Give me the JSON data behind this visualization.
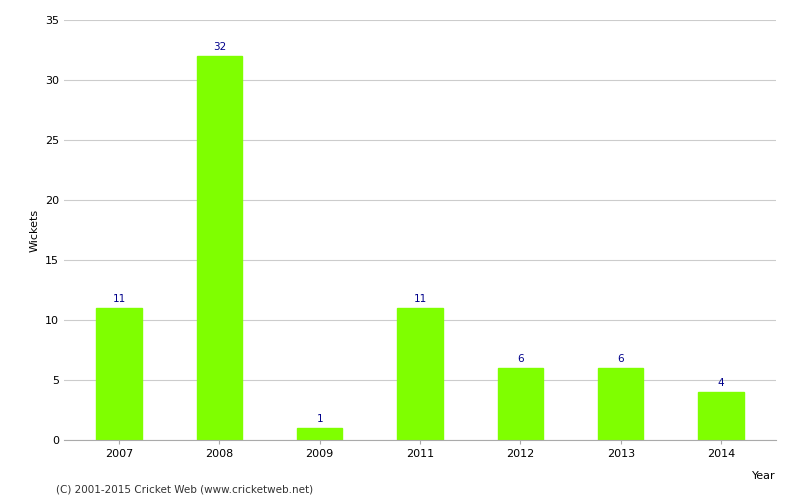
{
  "categories": [
    "2007",
    "2008",
    "2009",
    "2011",
    "2012",
    "2013",
    "2014"
  ],
  "values": [
    11,
    32,
    1,
    11,
    6,
    6,
    4
  ],
  "bar_color": "#7FFF00",
  "bar_edge_color": "#7FFF00",
  "xlabel": "Year",
  "ylabel": "Wickets",
  "ylim": [
    0,
    35
  ],
  "yticks": [
    0,
    5,
    10,
    15,
    20,
    25,
    30,
    35
  ],
  "label_color": "#00008B",
  "label_fontsize": 7.5,
  "axis_label_fontsize": 8,
  "tick_fontsize": 8,
  "footer": "(C) 2001-2015 Cricket Web (www.cricketweb.net)",
  "footer_fontsize": 7.5,
  "background_color": "#ffffff",
  "grid_color": "#cccccc",
  "bar_width": 0.45
}
